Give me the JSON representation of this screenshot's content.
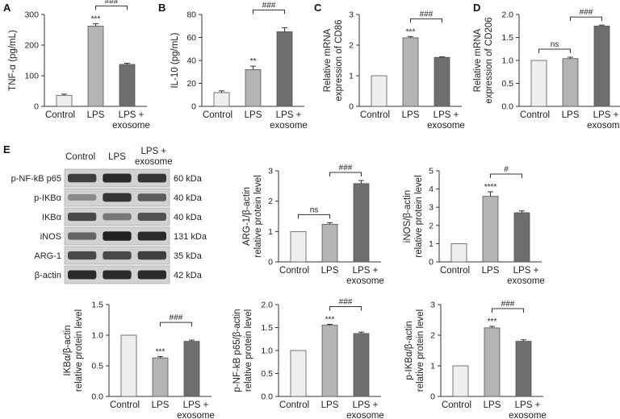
{
  "chart_data": [
    {
      "type": "bar",
      "panel": "A",
      "ylabel": "TNF-α (pg/mL)",
      "yticks": [
        0,
        100,
        200,
        300
      ],
      "ylim": [
        0,
        300
      ],
      "categories": [
        "Control",
        "LPS",
        "LPS + exosome"
      ],
      "values": [
        36,
        262,
        137
      ],
      "errors": [
        4,
        8,
        4
      ],
      "colors": [
        "#efefef",
        "#b4b4b4",
        "#6e6e6e"
      ],
      "marks": [
        "",
        "***",
        ""
      ],
      "brackets": [
        {
          "from": 1,
          "to": 2,
          "label": "###"
        }
      ]
    },
    {
      "type": "bar",
      "panel": "B",
      "ylabel": "IL-10 (pg/mL)",
      "yticks": [
        0,
        20,
        40,
        60,
        80
      ],
      "ylim": [
        0,
        80
      ],
      "categories": [
        "Control",
        "LPS",
        "LPS + exosome"
      ],
      "values": [
        12,
        32,
        65
      ],
      "errors": [
        1.5,
        3,
        3.5
      ],
      "colors": [
        "#efefef",
        "#b4b4b4",
        "#6e6e6e"
      ],
      "marks": [
        "",
        "**",
        ""
      ],
      "brackets": [
        {
          "from": 1,
          "to": 2,
          "label": "###"
        }
      ]
    },
    {
      "type": "bar",
      "panel": "C",
      "ylabel": [
        "Relative mRNA",
        "expression of CD86"
      ],
      "yticks": [
        0,
        1,
        2,
        3
      ],
      "ylim": [
        0,
        3
      ],
      "categories": [
        "Control",
        "LPS",
        "LPS + exosome"
      ],
      "values": [
        1.0,
        2.24,
        1.6
      ],
      "errors": [
        0,
        0.04,
        0.02
      ],
      "colors": [
        "#efefef",
        "#b4b4b4",
        "#6e6e6e"
      ],
      "marks": [
        "",
        "***",
        ""
      ],
      "brackets": [
        {
          "from": 1,
          "to": 2,
          "label": "###"
        }
      ]
    },
    {
      "type": "bar",
      "panel": "D",
      "ylabel": [
        "Relative mRNA",
        "expression of CD206"
      ],
      "yticks": [
        0,
        0.5,
        1.0,
        1.5,
        2.0
      ],
      "ylim": [
        0,
        2
      ],
      "categories": [
        "Control",
        "LPS",
        "LPS + exosome"
      ],
      "values": [
        1.0,
        1.04,
        1.75
      ],
      "errors": [
        0,
        0.03,
        0.02
      ],
      "colors": [
        "#efefef",
        "#b4b4b4",
        "#6e6e6e"
      ],
      "marks": [
        "",
        "",
        ""
      ],
      "brackets": [
        {
          "from": 0,
          "to": 1,
          "label": "ns"
        },
        {
          "from": 1,
          "to": 2,
          "label": "###"
        }
      ]
    },
    {
      "type": "bar",
      "panel": "",
      "ylabel": [
        "ARG-1/β-actin",
        "relative protein level"
      ],
      "yticks": [
        0,
        1,
        2,
        3
      ],
      "ylim": [
        0,
        3
      ],
      "categories": [
        "Control",
        "LPS",
        "LPS + exosome"
      ],
      "values": [
        1.0,
        1.24,
        2.58
      ],
      "errors": [
        0,
        0.05,
        0.1
      ],
      "colors": [
        "#efefef",
        "#b4b4b4",
        "#6e6e6e"
      ],
      "marks": [
        "",
        "",
        ""
      ],
      "brackets": [
        {
          "from": 0,
          "to": 1,
          "label": "ns"
        },
        {
          "from": 1,
          "to": 2,
          "label": "###"
        }
      ]
    },
    {
      "type": "bar",
      "panel": "",
      "ylabel": [
        "iNOS/β-actin",
        "relative protein level"
      ],
      "yticks": [
        0,
        1,
        2,
        3,
        4,
        5
      ],
      "ylim": [
        0,
        5
      ],
      "categories": [
        "Control",
        "LPS",
        "LPS + exosome"
      ],
      "values": [
        1.0,
        3.6,
        2.7
      ],
      "errors": [
        0,
        0.25,
        0.1
      ],
      "colors": [
        "#efefef",
        "#b4b4b4",
        "#6e6e6e"
      ],
      "marks": [
        "",
        "****",
        ""
      ],
      "brackets": [
        {
          "from": 1,
          "to": 2,
          "label": "#"
        }
      ]
    },
    {
      "type": "bar",
      "panel": "",
      "ylabel": [
        "IKBα/β-actin",
        "relative protein level"
      ],
      "yticks": [
        0,
        0.5,
        1.0,
        1.5
      ],
      "ylim": [
        0,
        1.5
      ],
      "categories": [
        "Control",
        "LPS",
        "LPS + exosome"
      ],
      "values": [
        1.0,
        0.63,
        0.9
      ],
      "errors": [
        0,
        0.02,
        0.02
      ],
      "colors": [
        "#efefef",
        "#b4b4b4",
        "#6e6e6e"
      ],
      "marks": [
        "",
        "***",
        ""
      ],
      "brackets": [
        {
          "from": 1,
          "to": 2,
          "label": "###"
        }
      ]
    },
    {
      "type": "bar",
      "panel": "",
      "ylabel": [
        "p-NF-kB p65/β-actin",
        "relative protein level"
      ],
      "yticks": [
        0,
        0.5,
        1.0,
        1.5,
        2.0
      ],
      "ylim": [
        0,
        2
      ],
      "categories": [
        "Control",
        "LPS",
        "LPS + exosome"
      ],
      "values": [
        1.0,
        1.55,
        1.37
      ],
      "errors": [
        0,
        0.02,
        0.03
      ],
      "colors": [
        "#efefef",
        "#b4b4b4",
        "#6e6e6e"
      ],
      "marks": [
        "",
        "***",
        ""
      ],
      "brackets": [
        {
          "from": 1,
          "to": 2,
          "label": "###"
        }
      ]
    },
    {
      "type": "bar",
      "panel": "",
      "ylabel": [
        "p-IKBα/β-actin",
        "relative protein level"
      ],
      "yticks": [
        0,
        1,
        2,
        3
      ],
      "ylim": [
        0,
        3
      ],
      "categories": [
        "Control",
        "LPS",
        "LPS + exosome"
      ],
      "values": [
        1.0,
        2.24,
        1.8
      ],
      "errors": [
        0,
        0.05,
        0.05
      ],
      "colors": [
        "#efefef",
        "#b4b4b4",
        "#6e6e6e"
      ],
      "marks": [
        "",
        "***",
        ""
      ],
      "brackets": [
        {
          "from": 1,
          "to": 2,
          "label": "###"
        }
      ]
    }
  ],
  "panel_e": {
    "letter": "E",
    "lanes": [
      "Control",
      "LPS",
      "LPS + exosome"
    ],
    "rows": [
      {
        "protein": "p-NF-kB p65",
        "size": "60 kDa"
      },
      {
        "protein": "p-IKBα",
        "size": "40 kDa"
      },
      {
        "protein": "IKBα",
        "size": "40 kDa"
      },
      {
        "protein": "iNOS",
        "size": "131 kDa"
      },
      {
        "protein": "ARG-1",
        "size": "35 kDa"
      },
      {
        "protein": "β-actin",
        "size": "42 kDa"
      }
    ],
    "band_intensity": [
      [
        0.75,
        0.85,
        0.8
      ],
      [
        0.35,
        0.8,
        0.6
      ],
      [
        0.7,
        0.45,
        0.65
      ],
      [
        0.55,
        0.9,
        0.85
      ],
      [
        0.7,
        0.7,
        0.75
      ],
      [
        0.85,
        0.85,
        0.85
      ]
    ]
  }
}
